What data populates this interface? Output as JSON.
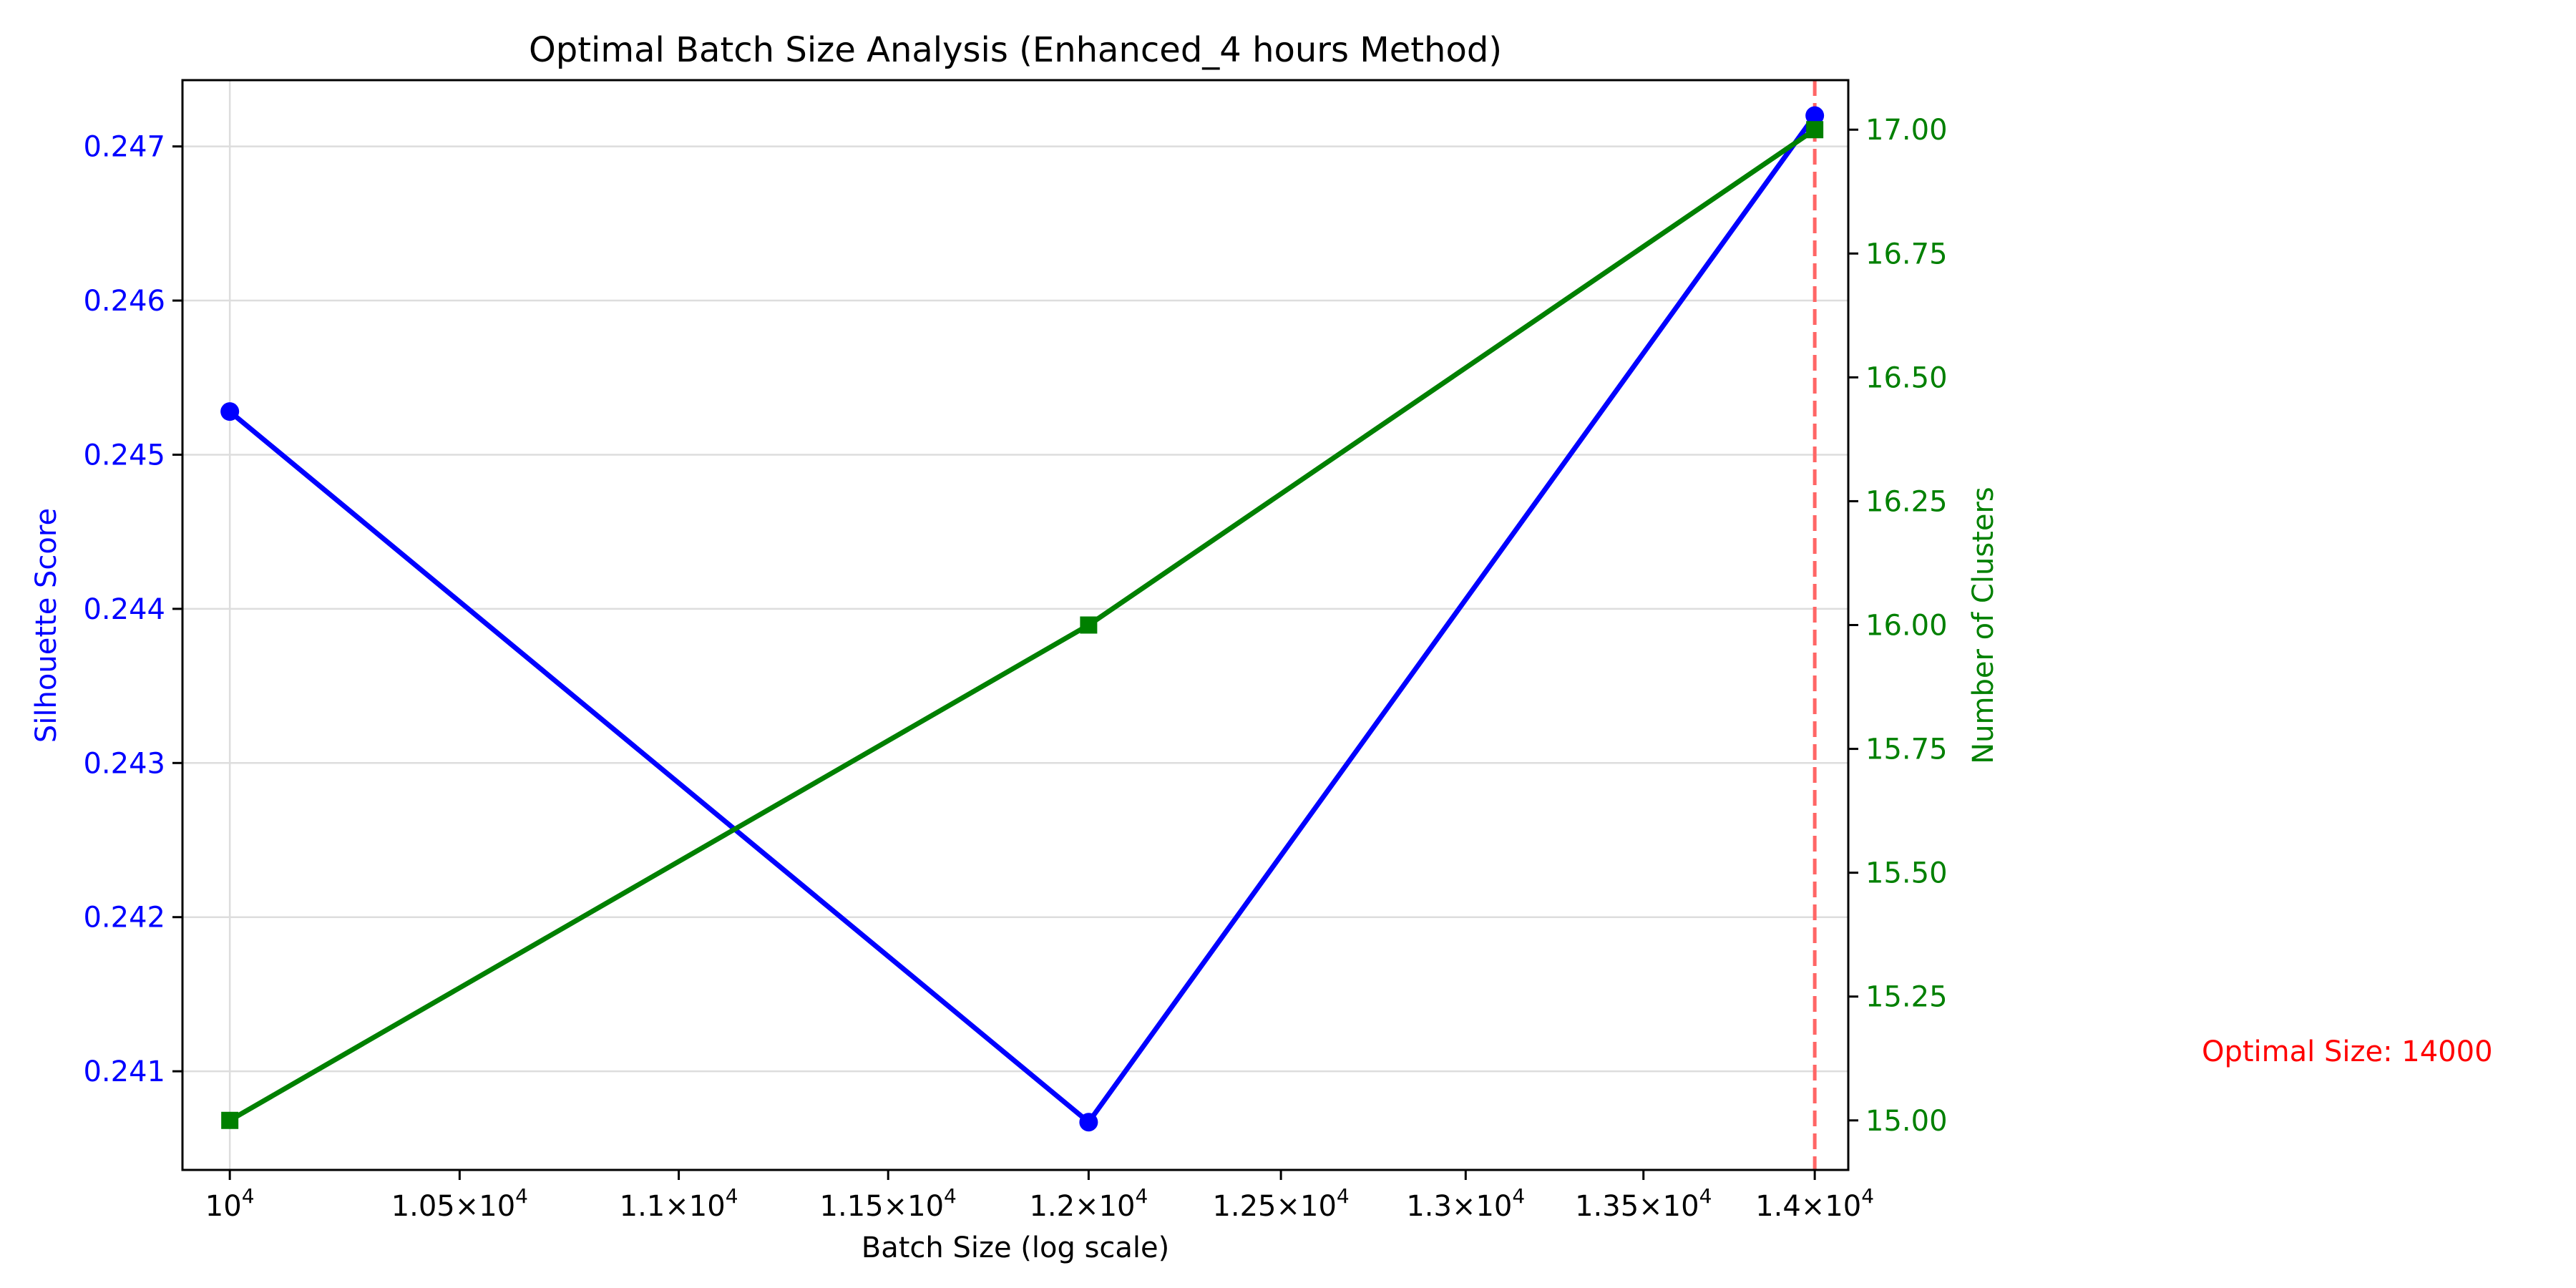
{
  "chart_data": {
    "type": "line",
    "title": "Optimal Batch Size Analysis (Enhanced_4 hours Method)",
    "xlabel": "Batch Size (log scale)",
    "x_scale": "log",
    "xlim": [
      9900,
      14100
    ],
    "x_ticks": [
      {
        "value": 10000,
        "base": "10",
        "exp": "4"
      },
      {
        "value": 10500,
        "coef": "1.05",
        "base": "10",
        "exp": "4"
      },
      {
        "value": 11000,
        "coef": "1.1",
        "base": "10",
        "exp": "4"
      },
      {
        "value": 11500,
        "coef": "1.15",
        "base": "10",
        "exp": "4"
      },
      {
        "value": 12000,
        "coef": "1.2",
        "base": "10",
        "exp": "4"
      },
      {
        "value": 12500,
        "coef": "1.25",
        "base": "10",
        "exp": "4"
      },
      {
        "value": 13000,
        "coef": "1.3",
        "base": "10",
        "exp": "4"
      },
      {
        "value": 13500,
        "coef": "1.35",
        "base": "10",
        "exp": "4"
      },
      {
        "value": 14000,
        "coef": "1.4",
        "base": "10",
        "exp": "4"
      }
    ],
    "x": [
      10000,
      12000,
      14000
    ],
    "left_axis": {
      "label": "Silhouette Score",
      "color": "#0000ff",
      "ylim": [
        0.24036,
        0.24743
      ],
      "ticks": [
        0.241,
        0.242,
        0.243,
        0.244,
        0.245,
        0.246,
        0.247
      ],
      "tick_labels": [
        "0.241",
        "0.242",
        "0.243",
        "0.244",
        "0.245",
        "0.246",
        "0.247"
      ]
    },
    "right_axis": {
      "label": "Number of Clusters",
      "color": "#008000",
      "ylim": [
        14.9,
        17.1
      ],
      "ticks": [
        15.0,
        15.25,
        15.5,
        15.75,
        16.0,
        16.25,
        16.5,
        16.75,
        17.0
      ],
      "tick_labels": [
        "15.00",
        "15.25",
        "15.50",
        "15.75",
        "16.00",
        "16.25",
        "16.50",
        "16.75",
        "17.00"
      ]
    },
    "series": [
      {
        "axis": "left",
        "color": "#0000ff",
        "marker": "circle",
        "values": [
          0.24528,
          0.24067,
          0.2472
        ]
      },
      {
        "axis": "right",
        "color": "#008000",
        "marker": "square",
        "values": [
          15,
          16,
          17
        ]
      }
    ],
    "optimal": {
      "x": 14000,
      "label": "Optimal Size: 14000",
      "color": "#ff0000",
      "line_color": "#ff6666"
    },
    "grid": true
  }
}
